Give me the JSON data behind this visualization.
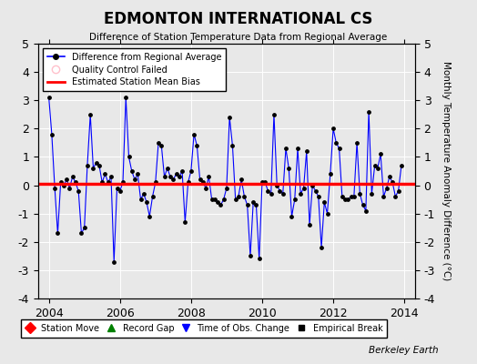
{
  "title": "EDMONTON INTERNATIONAL CS",
  "subtitle": "Difference of Station Temperature Data from Regional Average",
  "ylabel_right": "Monthly Temperature Anomaly Difference (°C)",
  "bias": 0.05,
  "xlim": [
    2003.7,
    2014.3
  ],
  "ylim": [
    -4,
    5
  ],
  "yticks": [
    -4,
    -3,
    -2,
    -1,
    0,
    1,
    2,
    3,
    4,
    5
  ],
  "xticks": [
    2004,
    2006,
    2008,
    2010,
    2012,
    2014
  ],
  "background": "#e8e8e8",
  "credit": "Berkeley Earth",
  "line_color": "#0000ff",
  "bias_color": "#ff0000",
  "time": [
    2004.0,
    2004.083,
    2004.167,
    2004.25,
    2004.333,
    2004.417,
    2004.5,
    2004.583,
    2004.667,
    2004.75,
    2004.833,
    2004.917,
    2005.0,
    2005.083,
    2005.167,
    2005.25,
    2005.333,
    2005.417,
    2005.5,
    2005.583,
    2005.667,
    2005.75,
    2005.833,
    2005.917,
    2006.0,
    2006.083,
    2006.167,
    2006.25,
    2006.333,
    2006.417,
    2006.5,
    2006.583,
    2006.667,
    2006.75,
    2006.833,
    2006.917,
    2007.0,
    2007.083,
    2007.167,
    2007.25,
    2007.333,
    2007.417,
    2007.5,
    2007.583,
    2007.667,
    2007.75,
    2007.833,
    2007.917,
    2008.0,
    2008.083,
    2008.167,
    2008.25,
    2008.333,
    2008.417,
    2008.5,
    2008.583,
    2008.667,
    2008.75,
    2008.833,
    2008.917,
    2009.0,
    2009.083,
    2009.167,
    2009.25,
    2009.333,
    2009.417,
    2009.5,
    2009.583,
    2009.667,
    2009.75,
    2009.833,
    2009.917,
    2010.0,
    2010.083,
    2010.167,
    2010.25,
    2010.333,
    2010.417,
    2010.5,
    2010.583,
    2010.667,
    2010.75,
    2010.833,
    2010.917,
    2011.0,
    2011.083,
    2011.167,
    2011.25,
    2011.333,
    2011.417,
    2011.5,
    2011.583,
    2011.667,
    2011.75,
    2011.833,
    2011.917,
    2012.0,
    2012.083,
    2012.167,
    2012.25,
    2012.333,
    2012.417,
    2012.5,
    2012.583,
    2012.667,
    2012.75,
    2012.833,
    2012.917,
    2013.0,
    2013.083,
    2013.167,
    2013.25,
    2013.333,
    2013.417,
    2013.5,
    2013.583,
    2013.667,
    2013.75,
    2013.833,
    2013.917
  ],
  "values": [
    3.1,
    1.8,
    -0.1,
    -1.7,
    0.1,
    0.0,
    0.2,
    -0.1,
    0.3,
    0.1,
    -0.2,
    -1.7,
    -1.5,
    0.7,
    2.5,
    0.6,
    0.8,
    0.7,
    0.1,
    0.4,
    0.1,
    0.3,
    -2.7,
    -0.1,
    -0.2,
    0.1,
    3.1,
    1.0,
    0.5,
    0.2,
    0.4,
    -0.5,
    -0.3,
    -0.6,
    -1.1,
    -0.4,
    0.1,
    1.5,
    1.4,
    0.3,
    0.6,
    0.3,
    0.2,
    0.4,
    0.3,
    0.5,
    -1.3,
    0.1,
    0.5,
    1.8,
    1.4,
    0.2,
    0.1,
    -0.1,
    0.3,
    -0.5,
    -0.5,
    -0.6,
    -0.7,
    -0.5,
    -0.1,
    2.4,
    1.4,
    -0.5,
    -0.4,
    0.2,
    -0.4,
    -0.7,
    -2.5,
    -0.6,
    -0.7,
    -2.6,
    0.1,
    0.1,
    -0.2,
    -0.3,
    2.5,
    0.0,
    -0.2,
    -0.3,
    1.3,
    0.6,
    -1.1,
    -0.5,
    1.3,
    -0.3,
    -0.1,
    1.2,
    -1.4,
    0.0,
    -0.2,
    -0.4,
    -2.2,
    -0.6,
    -1.0,
    0.4,
    2.0,
    1.5,
    1.3,
    -0.4,
    -0.5,
    -0.5,
    -0.4,
    -0.4,
    1.5,
    -0.3,
    -0.7,
    -0.9,
    2.6,
    -0.3,
    0.7,
    0.6,
    1.1,
    -0.4,
    -0.1,
    0.3,
    0.1,
    -0.4,
    -0.2,
    0.7
  ]
}
